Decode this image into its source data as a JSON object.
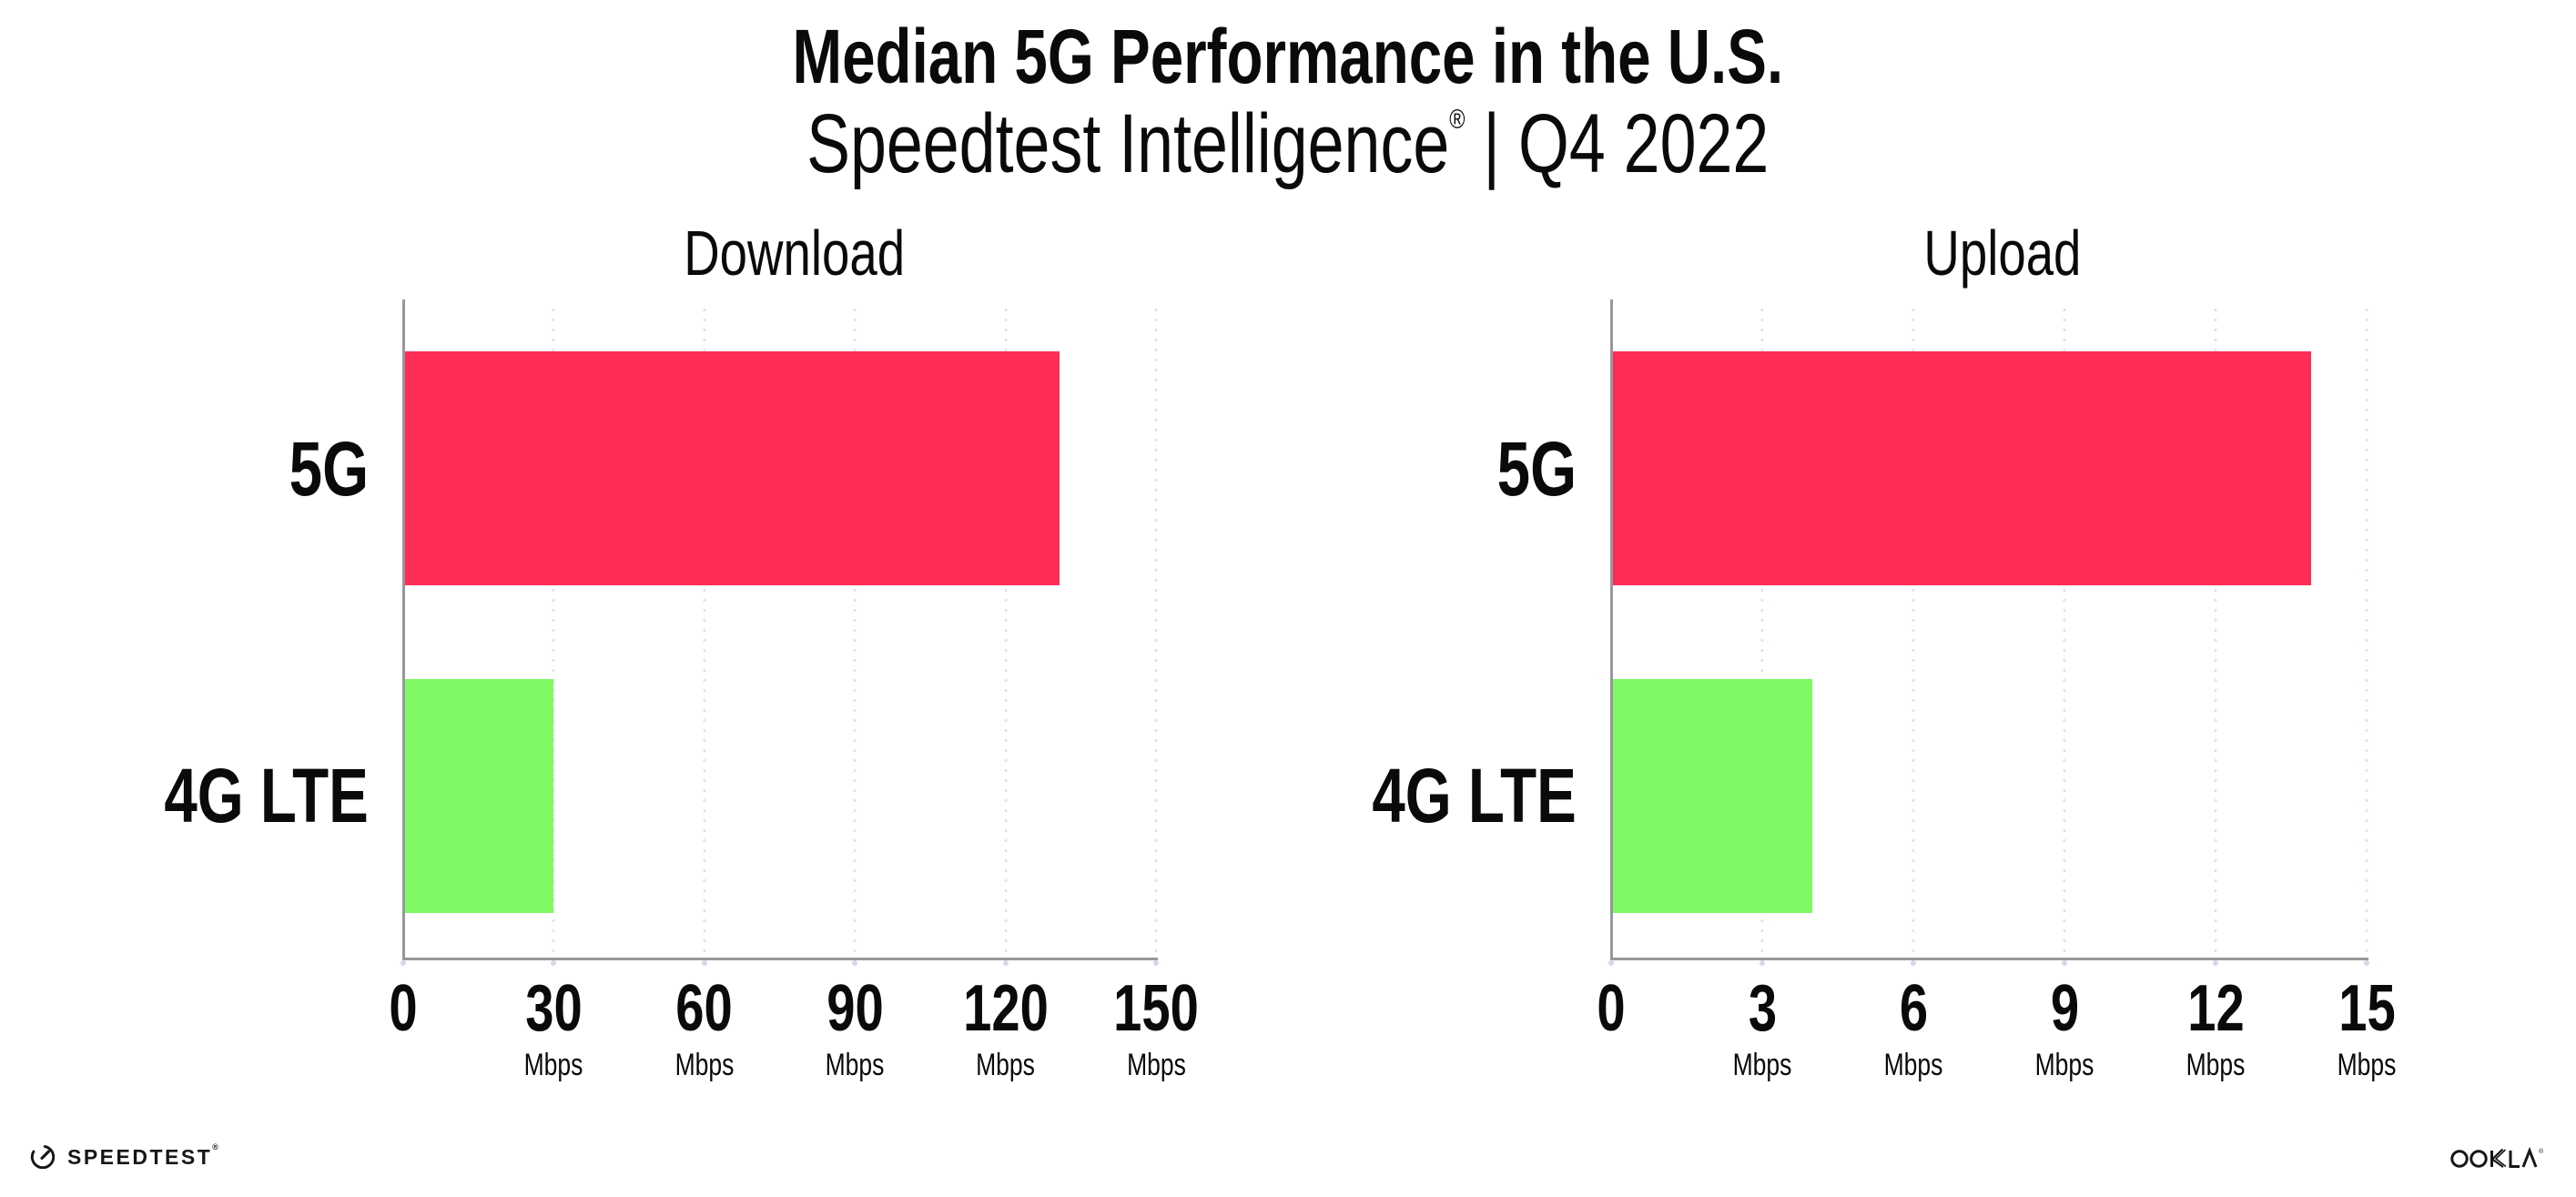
{
  "header": {
    "title": "Median 5G Performance in the U.S.",
    "subtitle_brand": "Speedtest Intelligence",
    "subtitle_reg": "®",
    "subtitle_rest": " | Q4 2022"
  },
  "colors": {
    "bar_5g_pink": "#fe2d55",
    "bar_4g_green": "#80f964",
    "axis_gray": "#97979d",
    "gridline_dot": "#e1e1ef",
    "text_black": "#0a0a0b"
  },
  "chart_data": [
    {
      "type": "bar",
      "orientation": "horizontal",
      "title": "Download",
      "categories": [
        "5G",
        "4G LTE"
      ],
      "values": [
        130.7,
        30
      ],
      "unit": "Mbps",
      "xlim": [
        0,
        150
      ],
      "xticks": [
        0,
        30,
        60,
        90,
        120,
        150
      ],
      "bar_colors": [
        "#fe2d55",
        "#80f964"
      ],
      "grid": "dotted-vertical",
      "legend": "none"
    },
    {
      "type": "bar",
      "orientation": "horizontal",
      "title": "Upload",
      "categories": [
        "5G",
        "4G LTE"
      ],
      "values": [
        13.9,
        4
      ],
      "unit": "Mbps",
      "xlim": [
        0,
        15
      ],
      "xticks": [
        0,
        3,
        6,
        9,
        12,
        15
      ],
      "bar_colors": [
        "#fe2d55",
        "#80f964"
      ],
      "grid": "dotted-vertical",
      "legend": "none"
    }
  ],
  "footer": {
    "speedtest_label": "SPEEDTEST",
    "speedtest_reg": "®",
    "ookla_label": "OOKLA",
    "ookla_reg": "®"
  }
}
